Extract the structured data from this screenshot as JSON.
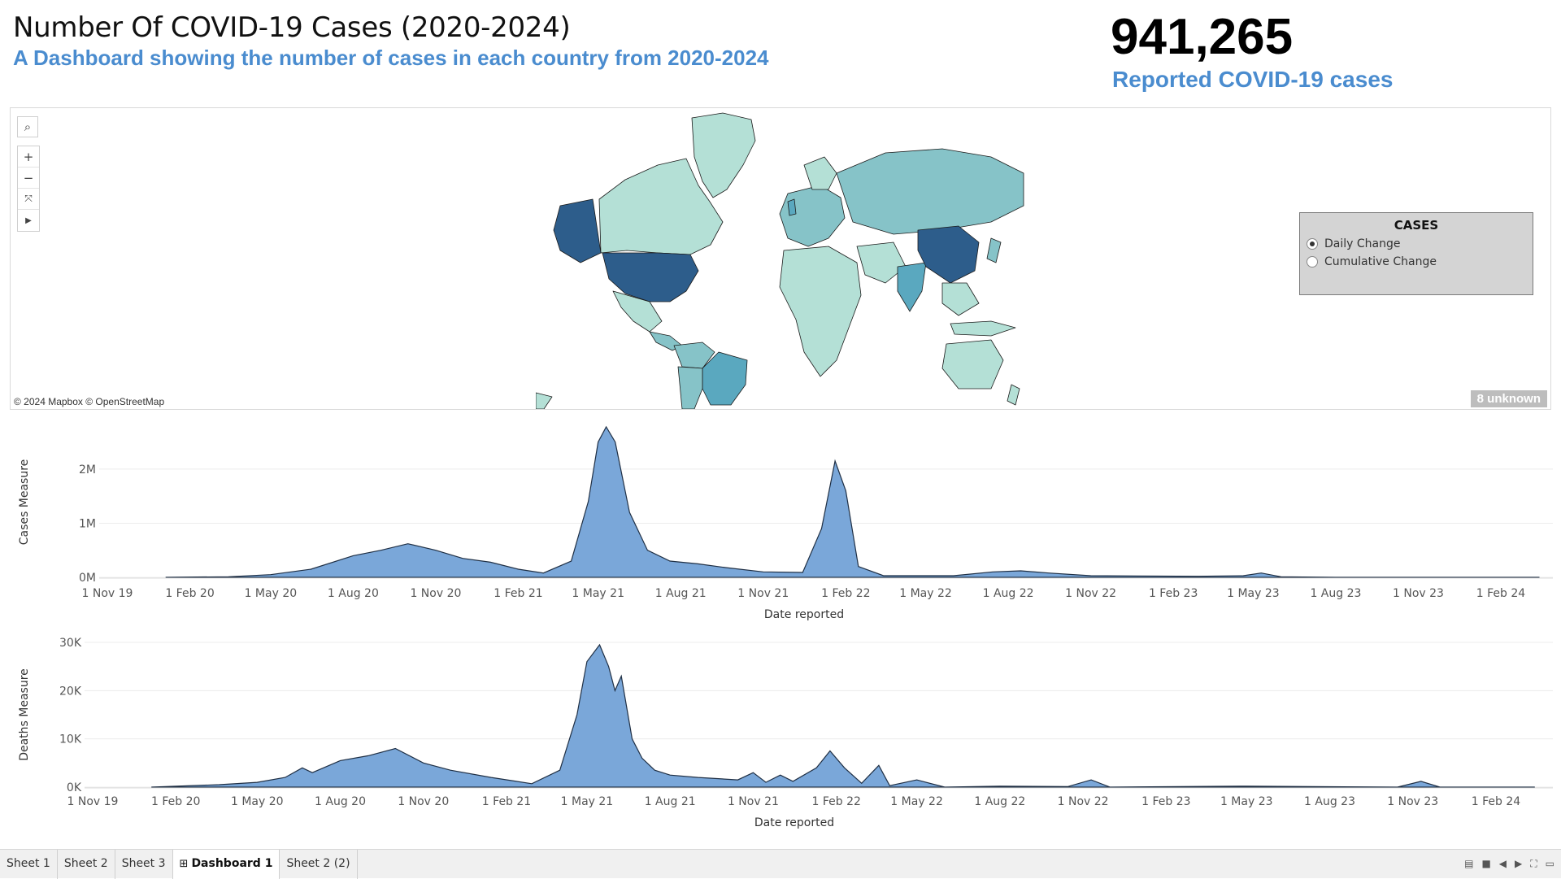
{
  "header": {
    "title": "Number Of COVID-19 Cases (2020-2024)",
    "subtitle": "A Dashboard showing the number of cases in each country from 2020-2024"
  },
  "kpi": {
    "value": "941,265",
    "label": "Reported COVID-19 cases"
  },
  "map": {
    "attribution": "© 2024 Mapbox © OpenStreetMap",
    "unknown_badge": "8 unknown",
    "tools": [
      "search-icon",
      "zoom-in-icon",
      "zoom-out-icon",
      "reset-icon",
      "play-icon"
    ],
    "colors": {
      "low": "#b4e0d6",
      "mid": "#86c3c8",
      "high": "#5aa8bf",
      "top": "#2d5d8b"
    }
  },
  "legend": {
    "title": "CASES",
    "options": [
      {
        "label": "Daily Change",
        "selected": true
      },
      {
        "label": "Cumulative Change",
        "selected": false
      }
    ]
  },
  "chart_data": [
    {
      "type": "area",
      "ylabel": "Cases Measure",
      "xlabel": "Date reported",
      "y_ticks": [
        "2M",
        "1M",
        "0M"
      ],
      "x_ticks": [
        "1 Nov 19",
        "1 Feb 20",
        "1 May 20",
        "1 Aug 20",
        "1 Nov 20",
        "1 Feb 21",
        "1 May 21",
        "1 Aug 21",
        "1 Nov 21",
        "1 Feb 22",
        "1 May 22",
        "1 Aug 22",
        "1 Nov 22",
        "1 Feb 23",
        "1 May 23",
        "1 Aug 23",
        "1 Nov 23",
        "1 Feb 24"
      ],
      "color": "#7aa7d9",
      "points": [
        [
          "2020-01-05",
          0
        ],
        [
          "2020-03-15",
          10000
        ],
        [
          "2020-05-01",
          50000
        ],
        [
          "2020-06-15",
          150000
        ],
        [
          "2020-08-01",
          400000
        ],
        [
          "2020-09-01",
          500000
        ],
        [
          "2020-10-01",
          620000
        ],
        [
          "2020-11-01",
          500000
        ],
        [
          "2020-12-01",
          350000
        ],
        [
          "2021-01-01",
          280000
        ],
        [
          "2021-02-01",
          150000
        ],
        [
          "2021-03-01",
          80000
        ],
        [
          "2021-04-01",
          300000
        ],
        [
          "2021-04-20",
          1400000
        ],
        [
          "2021-05-01",
          2500000
        ],
        [
          "2021-05-10",
          2780000
        ],
        [
          "2021-05-20",
          2500000
        ],
        [
          "2021-06-05",
          1200000
        ],
        [
          "2021-06-25",
          500000
        ],
        [
          "2021-07-20",
          300000
        ],
        [
          "2021-08-20",
          250000
        ],
        [
          "2021-09-20",
          180000
        ],
        [
          "2021-11-01",
          100000
        ],
        [
          "2021-12-15",
          90000
        ],
        [
          "2022-01-05",
          900000
        ],
        [
          "2022-01-20",
          2150000
        ],
        [
          "2022-02-01",
          1600000
        ],
        [
          "2022-02-15",
          200000
        ],
        [
          "2022-03-15",
          30000
        ],
        [
          "2022-06-01",
          30000
        ],
        [
          "2022-07-15",
          100000
        ],
        [
          "2022-08-15",
          120000
        ],
        [
          "2022-09-15",
          80000
        ],
        [
          "2022-11-01",
          30000
        ],
        [
          "2023-03-01",
          20000
        ],
        [
          "2023-04-20",
          30000
        ],
        [
          "2023-05-10",
          80000
        ],
        [
          "2023-06-01",
          10000
        ],
        [
          "2023-08-01",
          0
        ],
        [
          "2024-03-15",
          0
        ]
      ]
    },
    {
      "type": "area",
      "ylabel": "Deaths Measure",
      "xlabel": "Date reported",
      "y_ticks": [
        "30K",
        "20K",
        "10K",
        "0K"
      ],
      "x_ticks": [
        "1 Nov 19",
        "1 Feb 20",
        "1 May 20",
        "1 Aug 20",
        "1 Nov 20",
        "1 Feb 21",
        "1 May 21",
        "1 Aug 21",
        "1 Nov 21",
        "1 Feb 22",
        "1 May 22",
        "1 Aug 22",
        "1 Nov 22",
        "1 Feb 23",
        "1 May 23",
        "1 Aug 23",
        "1 Nov 23",
        "1 Feb 24"
      ],
      "color": "#7aa7d9",
      "points": [
        [
          "2020-01-05",
          0
        ],
        [
          "2020-03-20",
          500
        ],
        [
          "2020-05-01",
          1000
        ],
        [
          "2020-06-01",
          2000
        ],
        [
          "2020-06-20",
          4000
        ],
        [
          "2020-07-01",
          3000
        ],
        [
          "2020-08-01",
          5500
        ],
        [
          "2020-09-01",
          6500
        ],
        [
          "2020-10-01",
          8000
        ],
        [
          "2020-11-01",
          5000
        ],
        [
          "2020-12-01",
          3500
        ],
        [
          "2021-01-15",
          2000
        ],
        [
          "2021-03-01",
          700
        ],
        [
          "2021-04-01",
          3500
        ],
        [
          "2021-04-20",
          15000
        ],
        [
          "2021-05-01",
          26000
        ],
        [
          "2021-05-15",
          29500
        ],
        [
          "2021-05-25",
          25000
        ],
        [
          "2021-06-01",
          20000
        ],
        [
          "2021-06-08",
          23000
        ],
        [
          "2021-06-20",
          10000
        ],
        [
          "2021-07-01",
          6000
        ],
        [
          "2021-07-15",
          3500
        ],
        [
          "2021-08-01",
          2500
        ],
        [
          "2021-09-01",
          2000
        ],
        [
          "2021-10-15",
          1500
        ],
        [
          "2021-11-01",
          3000
        ],
        [
          "2021-11-15",
          1000
        ],
        [
          "2021-12-01",
          2500
        ],
        [
          "2021-12-15",
          1200
        ],
        [
          "2022-01-10",
          4000
        ],
        [
          "2022-01-25",
          7500
        ],
        [
          "2022-02-10",
          4000
        ],
        [
          "2022-03-01",
          800
        ],
        [
          "2022-03-20",
          4500
        ],
        [
          "2022-04-01",
          300
        ],
        [
          "2022-05-01",
          1500
        ],
        [
          "2022-06-01",
          0
        ],
        [
          "2022-08-01",
          200
        ],
        [
          "2022-10-15",
          100
        ],
        [
          "2022-11-10",
          1500
        ],
        [
          "2022-12-01",
          0
        ],
        [
          "2023-05-01",
          200
        ],
        [
          "2023-10-15",
          0
        ],
        [
          "2023-11-10",
          1200
        ],
        [
          "2023-12-01",
          0
        ],
        [
          "2024-03-15",
          0
        ]
      ]
    }
  ],
  "tabs": [
    {
      "label": "Sheet 1",
      "active": false
    },
    {
      "label": "Sheet 2",
      "active": false
    },
    {
      "label": "Sheet 3",
      "active": false
    },
    {
      "label": "Dashboard 1",
      "active": true
    },
    {
      "label": "Sheet 2 (2)",
      "active": false
    }
  ]
}
